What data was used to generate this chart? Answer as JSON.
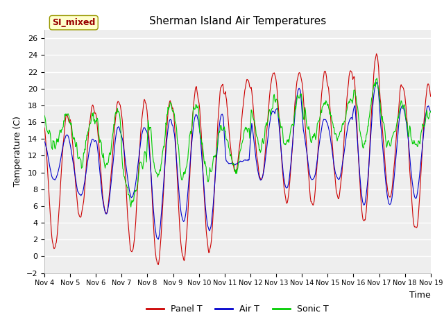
{
  "title": "Sherman Island Air Temperatures",
  "xlabel": "Time",
  "ylabel": "Temperature (C)",
  "ylim": [
    -2,
    27
  ],
  "yticks": [
    -2,
    0,
    2,
    4,
    6,
    8,
    10,
    12,
    14,
    16,
    18,
    20,
    22,
    24,
    26
  ],
  "xtick_labels": [
    "Nov 4",
    "Nov 5",
    "Nov 6",
    "Nov 7",
    "Nov 8",
    "Nov 9",
    "Nov 10",
    "Nov 11",
    "Nov 12",
    "Nov 13",
    "Nov 14",
    "Nov 15",
    "Nov 16",
    "Nov 17",
    "Nov 18",
    "Nov 19"
  ],
  "panel_t_color": "#cc0000",
  "air_t_color": "#0000cc",
  "sonic_t_color": "#00cc00",
  "fig_bg_color": "#ffffff",
  "plot_bg_color": "#eeeeee",
  "annotation_text": "SI_mixed",
  "annotation_color": "#990000",
  "annotation_bg": "#ffffcc",
  "legend_labels": [
    "Panel T",
    "Air T",
    "Sonic T"
  ],
  "day_mins_p": [
    1,
    4.5,
    5,
    0.5,
    -1,
    -0.5,
    0.3,
    10,
    9,
    6.5,
    6,
    7,
    4,
    7,
    3
  ],
  "day_maxs_p": [
    17,
    18,
    18.5,
    18.5,
    18.5,
    20,
    20.5,
    21,
    22,
    22,
    22,
    22,
    24,
    20.5,
    20.5
  ],
  "day_mins_a": [
    9,
    7,
    5,
    7,
    2,
    4,
    3,
    11,
    9,
    8,
    9,
    9,
    6,
    6,
    7
  ],
  "day_maxs_a": [
    14.5,
    14,
    15.5,
    15.5,
    16.5,
    17,
    17,
    11.5,
    17.5,
    20,
    16.5,
    16.5,
    21,
    18,
    18
  ],
  "day_mins_s": [
    13,
    11.5,
    11,
    6.5,
    9.5,
    9.5,
    10,
    10,
    13,
    13,
    14,
    14,
    13.5,
    13,
    13
  ],
  "day_maxs_s": [
    17,
    16.5,
    17,
    12,
    18,
    18,
    15,
    15.5,
    18.5,
    19,
    18.5,
    18.5,
    21,
    18.5,
    17
  ]
}
